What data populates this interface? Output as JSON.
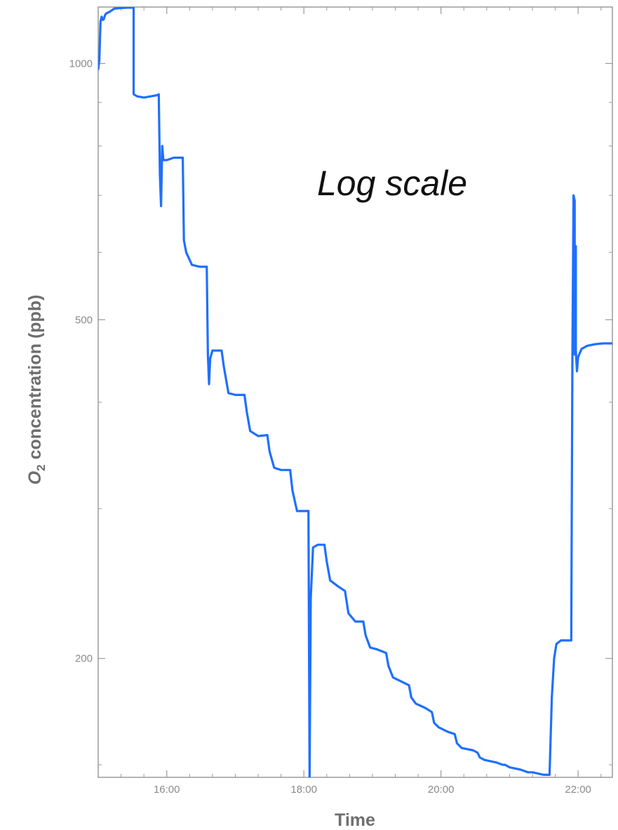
{
  "chart_data": {
    "type": "line",
    "title": "",
    "xlabel": "Time",
    "ylabel": "O2 concentration (ppb)",
    "ylabel_parts": {
      "symbol": "O",
      "subscript": "2",
      "rest": " concentration (ppb)"
    },
    "annotation": "Log scale",
    "y_scale": "log",
    "grid": false,
    "xlim": [
      "15:00",
      "22:30"
    ],
    "ylim": [
      145,
      1165
    ],
    "x_ticks": [
      {
        "value": "16:00",
        "label": "16:00"
      },
      {
        "value": "18:00",
        "label": "18:00"
      },
      {
        "value": "20:00",
        "label": "20:00"
      },
      {
        "value": "22:00",
        "label": "22:00"
      }
    ],
    "x_minor_ticks": [
      "15:20",
      "15:40",
      "16:20",
      "16:40",
      "17:00",
      "17:20",
      "17:40",
      "18:20",
      "18:40",
      "19:00",
      "19:20",
      "19:40",
      "20:20",
      "20:40",
      "21:00",
      "21:20",
      "21:40",
      "22:20"
    ],
    "y_ticks": [
      {
        "value": 1000,
        "label": "1000"
      },
      {
        "value": 500,
        "label": "500"
      },
      {
        "value": 200,
        "label": "200"
      }
    ],
    "y_minor_ticks": [
      150,
      300,
      400,
      600,
      700,
      800,
      900
    ],
    "series": [
      {
        "color": "#1f6fff",
        "points": [
          [
            "15:00",
            985
          ],
          [
            "15:01",
            1010
          ],
          [
            "15:02",
            1120
          ],
          [
            "15:03",
            1135
          ],
          [
            "15:04",
            1125
          ],
          [
            "15:05",
            1128
          ],
          [
            "15:06",
            1140
          ],
          [
            "15:07",
            1145
          ],
          [
            "15:10",
            1150
          ],
          [
            "15:14",
            1160
          ],
          [
            "15:20",
            1162
          ],
          [
            "15:26",
            1163
          ],
          [
            "15:31",
            1163
          ],
          [
            "15:31",
            920
          ],
          [
            "15:34",
            915
          ],
          [
            "15:40",
            912
          ],
          [
            "15:46",
            915
          ],
          [
            "15:52",
            918
          ],
          [
            "15:53",
            920
          ],
          [
            "15:54",
            740
          ],
          [
            "15:55",
            680
          ],
          [
            "15:56",
            800
          ],
          [
            "15:57",
            770
          ],
          [
            "16:00",
            770
          ],
          [
            "16:06",
            775
          ],
          [
            "16:14",
            775
          ],
          [
            "16:15",
            620
          ],
          [
            "16:17",
            600
          ],
          [
            "16:22",
            580
          ],
          [
            "16:29",
            577
          ],
          [
            "16:35",
            577
          ],
          [
            "16:36",
            455
          ],
          [
            "16:37",
            420
          ],
          [
            "16:38",
            450
          ],
          [
            "16:40",
            460
          ],
          [
            "16:48",
            460
          ],
          [
            "16:50",
            440
          ],
          [
            "16:54",
            410
          ],
          [
            "17:00",
            408
          ],
          [
            "17:08",
            408
          ],
          [
            "17:10",
            390
          ],
          [
            "17:13",
            370
          ],
          [
            "17:20",
            365
          ],
          [
            "17:28",
            366
          ],
          [
            "17:30",
            350
          ],
          [
            "17:34",
            335
          ],
          [
            "17:40",
            333
          ],
          [
            "17:48",
            333
          ],
          [
            "17:50",
            315
          ],
          [
            "17:54",
            298
          ],
          [
            "18:00",
            298
          ],
          [
            "18:04",
            298
          ],
          [
            "18:05",
            145
          ],
          [
            "18:06",
            235
          ],
          [
            "18:08",
            270
          ],
          [
            "18:12",
            272
          ],
          [
            "18:18",
            272
          ],
          [
            "18:20",
            260
          ],
          [
            "18:23",
            247
          ],
          [
            "18:30",
            243
          ],
          [
            "18:36",
            240
          ],
          [
            "18:39",
            226
          ],
          [
            "18:45",
            221
          ],
          [
            "18:52",
            221
          ],
          [
            "18:54",
            213
          ],
          [
            "18:58",
            206
          ],
          [
            "19:04",
            205
          ],
          [
            "19:12",
            203
          ],
          [
            "19:14",
            196
          ],
          [
            "19:18",
            190
          ],
          [
            "19:25",
            188
          ],
          [
            "19:32",
            186
          ],
          [
            "19:34",
            180
          ],
          [
            "19:38",
            177
          ],
          [
            "19:46",
            175
          ],
          [
            "19:52",
            173
          ],
          [
            "19:54",
            168
          ],
          [
            "19:58",
            166
          ],
          [
            "20:06",
            164
          ],
          [
            "20:12",
            163
          ],
          [
            "20:14",
            159
          ],
          [
            "20:18",
            157
          ],
          [
            "20:28",
            156
          ],
          [
            "20:32",
            155
          ],
          [
            "20:34",
            153
          ],
          [
            "20:38",
            152
          ],
          [
            "20:48",
            151
          ],
          [
            "20:54",
            150
          ],
          [
            "20:56",
            150
          ],
          [
            "21:00",
            149
          ],
          [
            "21:10",
            148
          ],
          [
            "21:16",
            147
          ],
          [
            "21:20",
            147
          ],
          [
            "21:30",
            146
          ],
          [
            "21:35",
            146
          ],
          [
            "21:37",
            180
          ],
          [
            "21:39",
            200
          ],
          [
            "21:41",
            208
          ],
          [
            "21:45",
            210
          ],
          [
            "21:54",
            210
          ],
          [
            "21:55",
            450
          ],
          [
            "21:56",
            700
          ],
          [
            "21:57",
            690
          ],
          [
            "21:57",
            455
          ],
          [
            "21:58",
            610
          ],
          [
            "21:58",
            460
          ],
          [
            "21:59",
            435
          ],
          [
            "22:00",
            452
          ],
          [
            "22:03",
            462
          ],
          [
            "22:08",
            466
          ],
          [
            "22:15",
            468
          ],
          [
            "22:22",
            469
          ],
          [
            "22:30",
            469
          ]
        ]
      }
    ]
  }
}
